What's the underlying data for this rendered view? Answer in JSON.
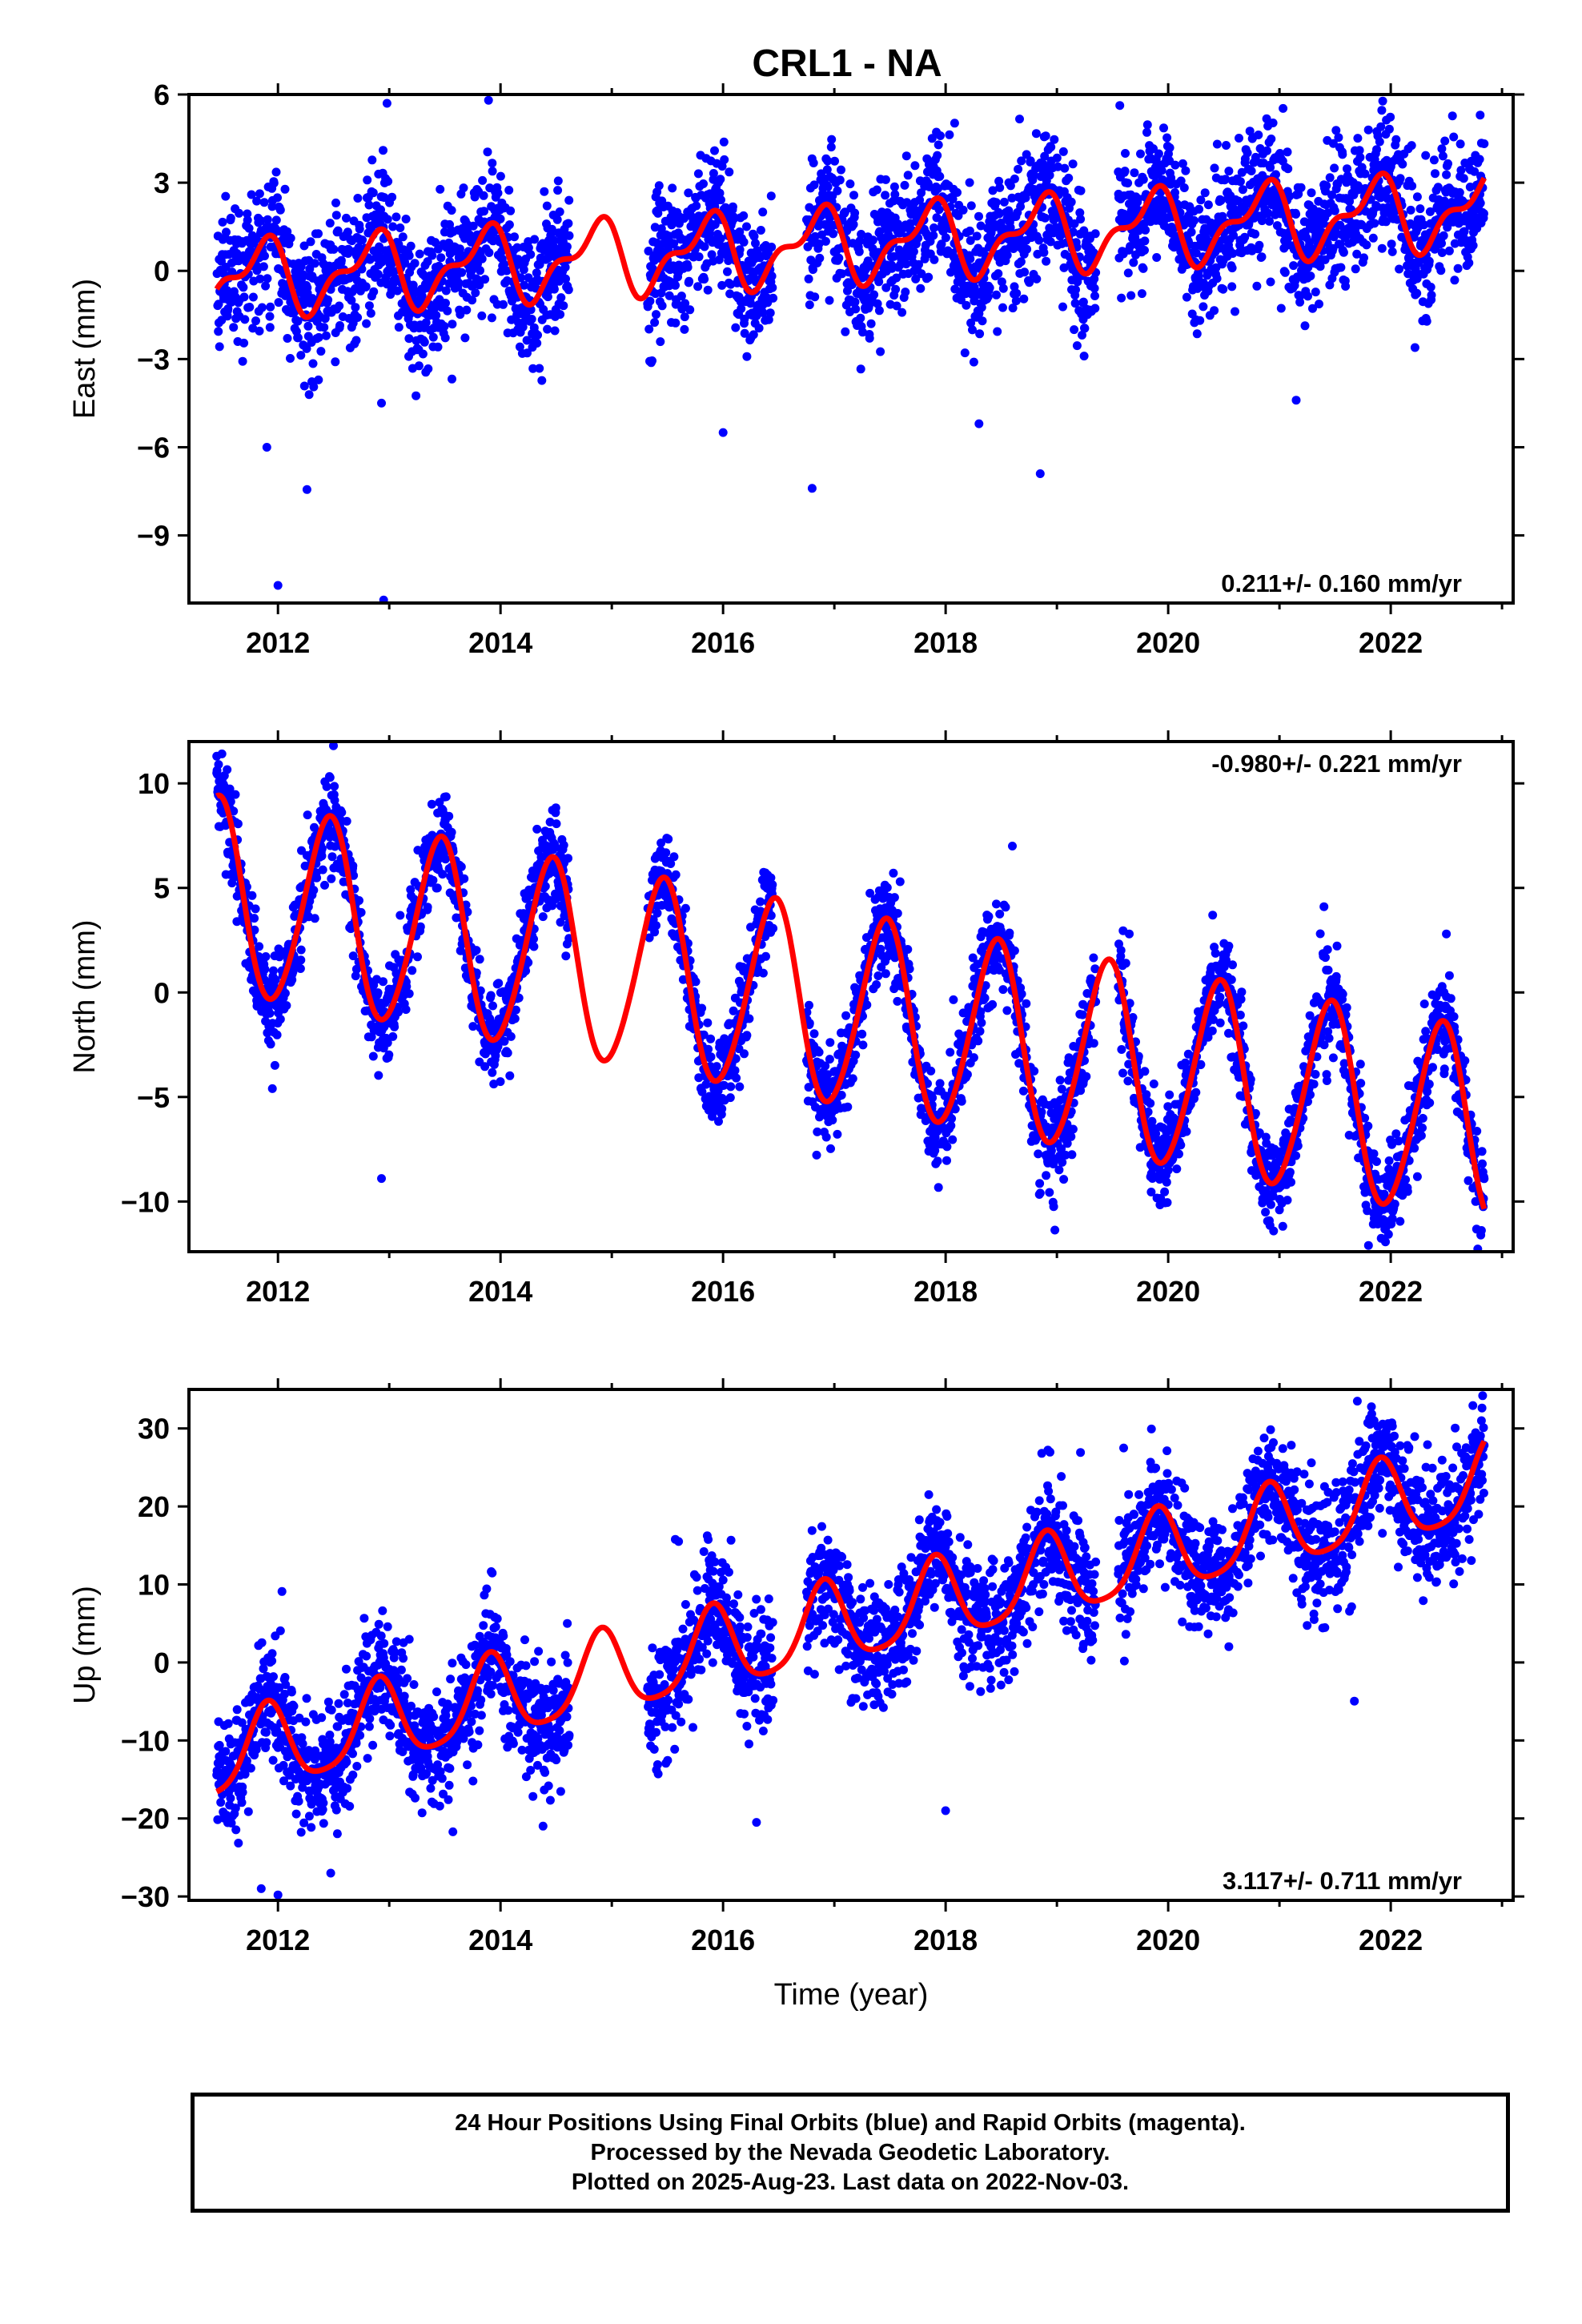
{
  "title": "CRL1 - NA",
  "footer": {
    "line1": "24 Hour Positions Using Final Orbits (blue) and Rapid Orbits (magenta).",
    "line2": "Processed by the Nevada Geodetic Laboratory.",
    "line3": "Plotted on 2025-Aug-23. Last data on 2022-Nov-03."
  },
  "colors": {
    "points": "#0000ff",
    "model": "#ff0000",
    "frame": "#000000"
  },
  "chart_data": [
    {
      "type": "scatter",
      "component": "east",
      "ylabel": "East (mm)",
      "xlabel": "",
      "xlim": [
        2011.2,
        2023.1
      ],
      "ylim": [
        -11.3,
        6.0
      ],
      "xticks": [
        2012,
        2014,
        2016,
        2018,
        2020,
        2022
      ],
      "yticks": [
        -9,
        -6,
        -3,
        0,
        3,
        6
      ],
      "ytick_labels": [
        "−9",
        "−6",
        "−3",
        "0",
        "3",
        "6"
      ],
      "rate_label": "0.211+/- 0.160 mm/yr",
      "rate_label_position": "bottom-right",
      "data_span": [
        2011.45,
        2022.84
      ],
      "data_gaps": [
        [
          2014.62,
          2015.32
        ],
        [
          2016.45,
          2016.75
        ],
        [
          2019.35,
          2019.55
        ]
      ],
      "model": {
        "t0": 2011.45,
        "offset": -0.3,
        "trend_mm_per_yr": 0.211,
        "annual_amp": 1.1,
        "annual_phase": 5.4,
        "semiannual_amp": 0.55,
        "semiannual_phase": 1.3
      },
      "scatter_sd": 1.15,
      "outliers": [
        [
          2012.0,
          -10.7
        ],
        [
          2012.95,
          -11.2
        ],
        [
          2012.98,
          5.7
        ],
        [
          2016.8,
          -7.4
        ],
        [
          2018.85,
          -6.9
        ],
        [
          2016.0,
          -5.5
        ],
        [
          2018.3,
          -5.2
        ],
        [
          2011.9,
          -6.0
        ],
        [
          2012.93,
          -4.5
        ],
        [
          2021.15,
          -4.4
        ]
      ]
    },
    {
      "type": "scatter",
      "component": "north",
      "ylabel": "North (mm)",
      "xlabel": "",
      "xlim": [
        2011.2,
        2023.1
      ],
      "ylim": [
        -12.4,
        12.0
      ],
      "xticks": [
        2012,
        2014,
        2016,
        2018,
        2020,
        2022
      ],
      "yticks": [
        -10,
        -5,
        0,
        5,
        10
      ],
      "ytick_labels": [
        "−10",
        "−5",
        "0",
        "5",
        "10"
      ],
      "rate_label": "-0.980+/- 0.221 mm/yr",
      "rate_label_position": "top-right",
      "data_span": [
        2011.45,
        2022.84
      ],
      "data_gaps": [
        [
          2014.62,
          2015.32
        ],
        [
          2016.45,
          2016.75
        ],
        [
          2019.35,
          2019.55
        ]
      ],
      "model": {
        "t0": 2011.45,
        "offset": 4.6,
        "trend_mm_per_yr": -0.98,
        "annual_amp": 4.6,
        "annual_phase": 1.55,
        "semiannual_amp": 0.4,
        "semiannual_phase": 0.5
      },
      "scatter_sd": 1.1,
      "outliers": [
        [
          2011.45,
          11.3
        ],
        [
          2011.95,
          -4.6
        ],
        [
          2012.93,
          -8.9
        ],
        [
          2018.85,
          -9.6
        ],
        [
          2021.8,
          -12.1
        ],
        [
          2021.4,
          4.1
        ],
        [
          2022.5,
          2.8
        ],
        [
          2018.6,
          7.0
        ],
        [
          2019.65,
          2.8
        ],
        [
          2020.4,
          3.7
        ]
      ]
    },
    {
      "type": "scatter",
      "component": "up",
      "ylabel": "Up (mm)",
      "xlabel": "Time (year)",
      "xlim": [
        2011.2,
        2023.1
      ],
      "ylim": [
        -30.5,
        35.0
      ],
      "xticks": [
        2012,
        2014,
        2016,
        2018,
        2020,
        2022
      ],
      "yticks": [
        -30,
        -20,
        -10,
        0,
        10,
        20,
        30
      ],
      "ytick_labels": [
        "−30",
        "−20",
        "−10",
        "0",
        "10",
        "20",
        "30"
      ],
      "rate_label": "3.117+/- 0.711 mm/yr",
      "rate_label_position": "bottom-right",
      "data_span": [
        2011.45,
        2022.84
      ],
      "data_gaps": [
        [
          2014.62,
          2015.32
        ],
        [
          2016.45,
          2016.75
        ],
        [
          2019.35,
          2019.55
        ]
      ],
      "model": {
        "t0": 2011.45,
        "offset": -12.5,
        "trend_mm_per_yr": 3.117,
        "annual_amp": 5.2,
        "annual_phase": 5.0,
        "semiannual_amp": 1.0,
        "semiannual_phase": 2.0
      },
      "scatter_sd": 3.8,
      "outliers": [
        [
          2011.85,
          -29.0
        ],
        [
          2012.0,
          -29.8
        ],
        [
          2021.7,
          33.5
        ],
        [
          2022.8,
          28.5
        ],
        [
          2016.3,
          -20.5
        ],
        [
          2015.6,
          15.5
        ],
        [
          2019.6,
          27.5
        ],
        [
          2021.85,
          31.0
        ],
        [
          2018.0,
          -19.0
        ],
        [
          2014.6,
          5.0
        ]
      ]
    }
  ]
}
